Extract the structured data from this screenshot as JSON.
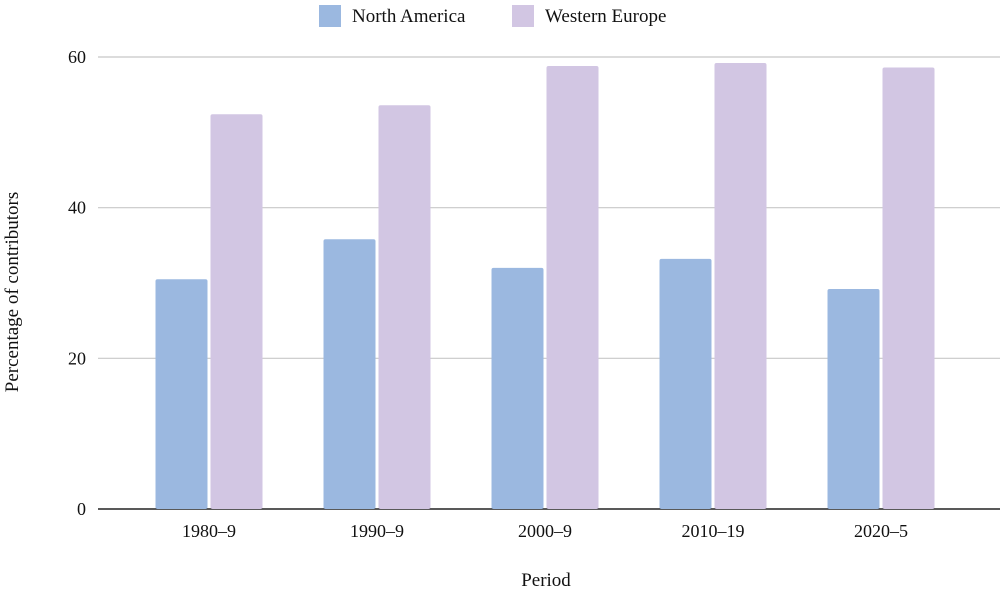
{
  "chart_data": {
    "type": "bar",
    "title": "",
    "xlabel": "Period",
    "ylabel": "Percentage of contributors",
    "ylim": [
      0,
      60
    ],
    "yticks": [
      0,
      20,
      40,
      60
    ],
    "grid": true,
    "legend_position": "top-center",
    "categories": [
      "1980–9",
      "1990–9",
      "2000–9",
      "2010–19",
      "2020–5"
    ],
    "series": [
      {
        "name": "North America",
        "color": "#9bb8e0",
        "values": [
          30.5,
          35.8,
          32.0,
          33.2,
          29.2
        ]
      },
      {
        "name": "Western Europe",
        "color": "#d2c6e3",
        "values": [
          52.4,
          53.6,
          58.8,
          59.2,
          58.6
        ]
      }
    ]
  }
}
